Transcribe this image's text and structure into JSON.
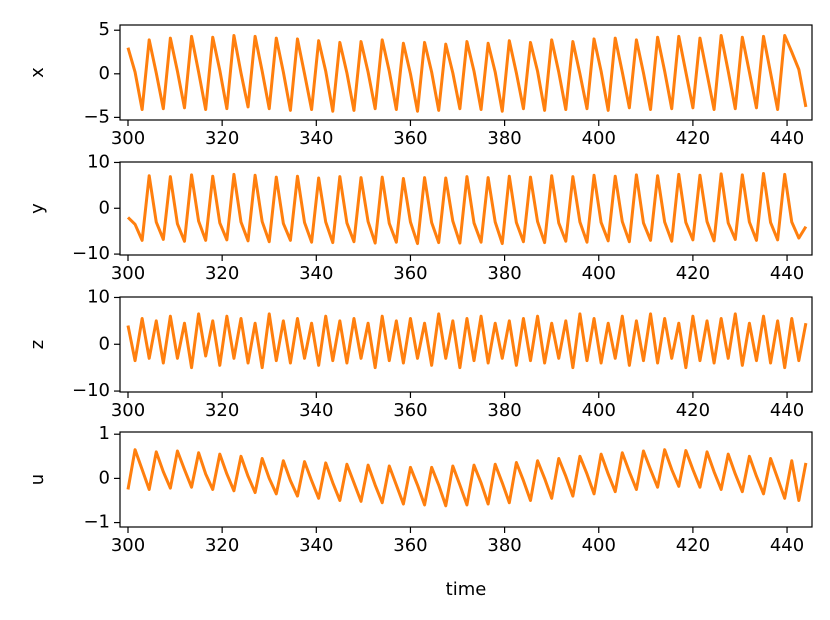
{
  "chart_data": [
    {
      "type": "line",
      "ylabel": "x",
      "x": [
        300,
        301.5,
        303,
        304.5,
        306,
        307.5,
        309,
        310.5,
        312,
        313.5,
        315,
        316.5,
        318,
        319.5,
        321,
        322.5,
        324,
        325.5,
        327,
        328.5,
        330,
        331.5,
        333,
        334.5,
        336,
        337.5,
        339,
        340.5,
        342,
        343.5,
        345,
        346.5,
        348,
        349.5,
        351,
        352.5,
        354,
        355.5,
        357,
        358.5,
        360,
        361.5,
        363,
        364.5,
        366,
        367.5,
        369,
        370.5,
        372,
        373.5,
        375,
        376.5,
        378,
        379.5,
        381,
        382.5,
        384,
        385.5,
        387,
        388.5,
        390,
        391.5,
        393,
        394.5,
        396,
        397.5,
        399,
        400.5,
        402,
        403.5,
        405,
        406.5,
        408,
        409.5,
        411,
        412.5,
        414,
        415.5,
        417,
        418.5,
        420,
        421.5,
        423,
        424.5,
        426,
        427.5,
        429,
        430.5,
        432,
        433.5,
        435,
        436.5,
        438,
        439.5,
        441,
        442.5,
        444
      ],
      "series": [
        {
          "color": "#ff7f0e",
          "values": [
            3.0,
            0.2,
            -4.1,
            3.9,
            0.1,
            -4.0,
            4.1,
            0.3,
            -3.9,
            4.3,
            0.2,
            -4.1,
            4.2,
            0.4,
            -4.0,
            4.4,
            0.1,
            -3.8,
            4.3,
            0.3,
            -4.0,
            4.1,
            0.2,
            -4.2,
            4.0,
            0.0,
            -4.1,
            3.8,
            0.3,
            -4.3,
            3.6,
            0.1,
            -4.2,
            3.7,
            0.2,
            -4.0,
            3.9,
            0.3,
            -4.1,
            3.5,
            0.0,
            -4.3,
            3.6,
            0.2,
            -4.2,
            3.4,
            0.1,
            -4.0,
            3.7,
            0.3,
            -4.1,
            3.5,
            0.2,
            -4.3,
            3.8,
            0.1,
            -4.0,
            3.6,
            0.3,
            -4.2,
            3.9,
            0.2,
            -4.1,
            3.7,
            0.0,
            -4.0,
            4.0,
            0.3,
            -4.2,
            4.1,
            0.2,
            -3.9,
            3.9,
            0.1,
            -4.1,
            4.2,
            0.3,
            -4.0,
            4.3,
            0.2,
            -3.9,
            4.1,
            0.0,
            -4.1,
            4.4,
            0.3,
            -4.0,
            4.2,
            0.2,
            -3.9,
            4.3,
            0.1,
            -4.1,
            4.4,
            2.5,
            0.5,
            -3.8
          ]
        }
      ],
      "xlim": [
        298.3,
        445.3
      ],
      "xticks": [
        300,
        320,
        340,
        360,
        380,
        400,
        420,
        440
      ],
      "ylim": [
        -5.3,
        5.6
      ],
      "yticks": [
        {
          "value": -5,
          "label": "−5"
        },
        0,
        5
      ]
    },
    {
      "type": "line",
      "ylabel": "y",
      "x": [
        300,
        301.5,
        303,
        304.5,
        306,
        307.5,
        309,
        310.5,
        312,
        313.5,
        315,
        316.5,
        318,
        319.5,
        321,
        322.5,
        324,
        325.5,
        327,
        328.5,
        330,
        331.5,
        333,
        334.5,
        336,
        337.5,
        339,
        340.5,
        342,
        343.5,
        345,
        346.5,
        348,
        349.5,
        351,
        352.5,
        354,
        355.5,
        357,
        358.5,
        360,
        361.5,
        363,
        364.5,
        366,
        367.5,
        369,
        370.5,
        372,
        373.5,
        375,
        376.5,
        378,
        379.5,
        381,
        382.5,
        384,
        385.5,
        387,
        388.5,
        390,
        391.5,
        393,
        394.5,
        396,
        397.5,
        399,
        400.5,
        402,
        403.5,
        405,
        406.5,
        408,
        409.5,
        411,
        412.5,
        414,
        415.5,
        417,
        418.5,
        420,
        421.5,
        423,
        424.5,
        426,
        427.5,
        429,
        430.5,
        432,
        433.5,
        435,
        436.5,
        438,
        439.5,
        441,
        442.5,
        444
      ],
      "series": [
        {
          "color": "#ff7f0e",
          "values": [
            -2.0,
            -3.5,
            -7.0,
            7.1,
            -3.0,
            -6.8,
            6.9,
            -3.4,
            -7.2,
            7.3,
            -2.8,
            -7.0,
            7.0,
            -3.2,
            -6.9,
            7.4,
            -3.0,
            -7.1,
            7.2,
            -2.9,
            -7.3,
            6.8,
            -3.3,
            -7.0,
            7.0,
            -3.1,
            -7.4,
            6.6,
            -3.0,
            -7.5,
            6.9,
            -3.2,
            -7.3,
            6.7,
            -2.9,
            -7.6,
            6.8,
            -3.3,
            -7.4,
            6.5,
            -3.0,
            -7.7,
            6.7,
            -3.1,
            -7.5,
            6.6,
            -2.8,
            -7.6,
            6.9,
            -3.2,
            -7.4,
            6.7,
            -3.0,
            -7.7,
            7.0,
            -3.1,
            -7.3,
            6.8,
            -2.9,
            -7.5,
            7.1,
            -3.2,
            -7.2,
            6.9,
            -3.0,
            -7.4,
            7.2,
            -3.1,
            -7.1,
            7.0,
            -2.9,
            -7.3,
            7.3,
            -3.2,
            -7.0,
            7.1,
            -3.0,
            -7.2,
            7.4,
            -3.1,
            -6.9,
            7.2,
            -2.9,
            -7.1,
            7.5,
            -3.2,
            -6.8,
            7.3,
            -3.0,
            -7.0,
            7.6,
            -3.1,
            -6.9,
            7.4,
            -3.0,
            -6.5,
            -4.0
          ]
        }
      ],
      "xlim": [
        298.3,
        445.3
      ],
      "xticks": [
        300,
        320,
        340,
        360,
        380,
        400,
        420,
        440
      ],
      "ylim": [
        -10.2,
        10.1
      ],
      "yticks": [
        {
          "value": -10,
          "label": "−10"
        },
        0,
        10
      ]
    },
    {
      "type": "line",
      "ylabel": "z",
      "x": [
        300,
        301.5,
        303,
        304.5,
        306,
        307.5,
        309,
        310.5,
        312,
        313.5,
        315,
        316.5,
        318,
        319.5,
        321,
        322.5,
        324,
        325.5,
        327,
        328.5,
        330,
        331.5,
        333,
        334.5,
        336,
        337.5,
        339,
        340.5,
        342,
        343.5,
        345,
        346.5,
        348,
        349.5,
        351,
        352.5,
        354,
        355.5,
        357,
        358.5,
        360,
        361.5,
        363,
        364.5,
        366,
        367.5,
        369,
        370.5,
        372,
        373.5,
        375,
        376.5,
        378,
        379.5,
        381,
        382.5,
        384,
        385.5,
        387,
        388.5,
        390,
        391.5,
        393,
        394.5,
        396,
        397.5,
        399,
        400.5,
        402,
        403.5,
        405,
        406.5,
        408,
        409.5,
        411,
        412.5,
        414,
        415.5,
        417,
        418.5,
        420,
        421.5,
        423,
        424.5,
        426,
        427.5,
        429,
        430.5,
        432,
        433.5,
        435,
        436.5,
        438,
        439.5,
        441,
        442.5,
        444
      ],
      "series": [
        {
          "color": "#ff7f0e",
          "values": [
            4.0,
            -3.5,
            5.5,
            -3.0,
            5.0,
            -4.0,
            6.0,
            -3.0,
            4.5,
            -5.0,
            6.5,
            -2.5,
            5.0,
            -4.5,
            6.0,
            -3.0,
            5.5,
            -4.0,
            4.5,
            -5.0,
            6.5,
            -3.5,
            5.0,
            -4.0,
            5.5,
            -3.0,
            4.5,
            -4.5,
            6.0,
            -3.5,
            5.0,
            -4.0,
            5.5,
            -3.0,
            4.5,
            -5.0,
            6.0,
            -3.5,
            5.0,
            -4.0,
            5.5,
            -3.0,
            4.5,
            -4.5,
            6.5,
            -3.0,
            5.0,
            -5.0,
            5.5,
            -3.5,
            6.0,
            -4.0,
            4.5,
            -3.0,
            5.0,
            -4.5,
            5.5,
            -3.5,
            6.0,
            -4.0,
            4.5,
            -3.0,
            5.0,
            -5.0,
            6.5,
            -3.5,
            5.5,
            -4.0,
            4.5,
            -3.0,
            6.0,
            -4.5,
            5.0,
            -3.5,
            6.5,
            -4.0,
            5.5,
            -3.0,
            4.5,
            -5.0,
            6.0,
            -3.5,
            5.0,
            -4.0,
            5.5,
            -3.0,
            6.5,
            -4.5,
            4.5,
            -3.5,
            6.0,
            -4.0,
            5.0,
            -5.0,
            5.5,
            -3.5,
            4.5
          ]
        }
      ],
      "xlim": [
        298.3,
        445.3
      ],
      "xticks": [
        300,
        320,
        340,
        360,
        380,
        400,
        420,
        440
      ],
      "ylim": [
        -10.2,
        10.1
      ],
      "yticks": [
        {
          "value": -10,
          "label": "−10"
        },
        0,
        10
      ]
    },
    {
      "type": "line",
      "ylabel": "u",
      "xlabel": "time",
      "x": [
        300,
        301.5,
        303,
        304.5,
        306,
        307.5,
        309,
        310.5,
        312,
        313.5,
        315,
        316.5,
        318,
        319.5,
        321,
        322.5,
        324,
        325.5,
        327,
        328.5,
        330,
        331.5,
        333,
        334.5,
        336,
        337.5,
        339,
        340.5,
        342,
        343.5,
        345,
        346.5,
        348,
        349.5,
        351,
        352.5,
        354,
        355.5,
        357,
        358.5,
        360,
        361.5,
        363,
        364.5,
        366,
        367.5,
        369,
        370.5,
        372,
        373.5,
        375,
        376.5,
        378,
        379.5,
        381,
        382.5,
        384,
        385.5,
        387,
        388.5,
        390,
        391.5,
        393,
        394.5,
        396,
        397.5,
        399,
        400.5,
        402,
        403.5,
        405,
        406.5,
        408,
        409.5,
        411,
        412.5,
        414,
        415.5,
        417,
        418.5,
        420,
        421.5,
        423,
        424.5,
        426,
        427.5,
        429,
        430.5,
        432,
        433.5,
        435,
        436.5,
        438,
        439.5,
        441,
        442.5,
        444
      ],
      "series": [
        {
          "color": "#ff7f0e",
          "values": [
            -0.25,
            0.65,
            0.2,
            -0.25,
            0.6,
            0.15,
            -0.22,
            0.62,
            0.2,
            -0.2,
            0.58,
            0.1,
            -0.25,
            0.55,
            0.1,
            -0.28,
            0.5,
            0.05,
            -0.32,
            0.45,
            0.0,
            -0.35,
            0.4,
            -0.05,
            -0.4,
            0.38,
            -0.05,
            -0.45,
            0.35,
            -0.1,
            -0.5,
            0.32,
            -0.1,
            -0.52,
            0.3,
            -0.15,
            -0.55,
            0.28,
            -0.15,
            -0.58,
            0.25,
            -0.15,
            -0.6,
            0.25,
            -0.15,
            -0.62,
            0.28,
            -0.15,
            -0.6,
            0.3,
            -0.1,
            -0.58,
            0.32,
            -0.1,
            -0.55,
            0.36,
            -0.05,
            -0.5,
            0.4,
            0.0,
            -0.45,
            0.45,
            0.05,
            -0.4,
            0.5,
            0.1,
            -0.35,
            0.55,
            0.1,
            -0.3,
            0.58,
            0.15,
            -0.25,
            0.62,
            0.2,
            -0.2,
            0.65,
            0.2,
            -0.18,
            0.63,
            0.2,
            -0.2,
            0.6,
            0.15,
            -0.25,
            0.55,
            0.1,
            -0.3,
            0.5,
            0.05,
            -0.35,
            0.45,
            0.0,
            -0.45,
            0.4,
            -0.5,
            0.35
          ]
        }
      ],
      "xlim": [
        298.3,
        445.3
      ],
      "xticks": [
        300,
        320,
        340,
        360,
        380,
        400,
        420,
        440
      ],
      "ylim": [
        -1.1,
        1.05
      ],
      "yticks": [
        {
          "value": -1,
          "label": "−1"
        },
        0,
        1
      ]
    }
  ]
}
